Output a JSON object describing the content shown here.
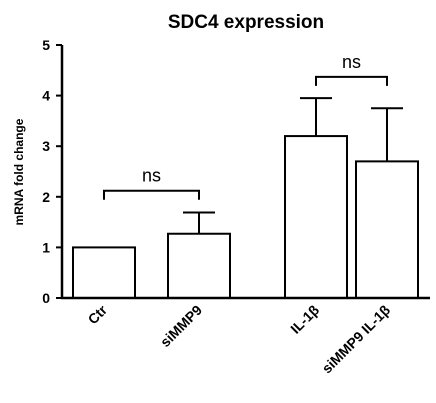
{
  "chart_data": {
    "type": "bar",
    "title": "SDC4 expression",
    "xlabel": "",
    "ylabel": "mRNA fold change",
    "ylim": [
      0,
      5
    ],
    "yticks": [
      "0",
      "1",
      "2",
      "3",
      "4",
      "5"
    ],
    "categories": [
      "Ctr",
      "siMMP9",
      "IL-1β",
      "siMMP9 IL-1β"
    ],
    "values": [
      1.0,
      1.27,
      3.2,
      2.7
    ],
    "error_upper": [
      0.0,
      0.42,
      0.75,
      1.05
    ],
    "bar_fill": "#ffffff",
    "bar_stroke": "#000000",
    "grid": false,
    "legend": "none",
    "annotations": [
      {
        "text": "ns",
        "from": "Ctr",
        "to": "siMMP9",
        "y": 2.12
      },
      {
        "text": "ns",
        "from": "IL-1β",
        "to": "siMMP9 IL-1β",
        "y": 4.37
      }
    ]
  }
}
